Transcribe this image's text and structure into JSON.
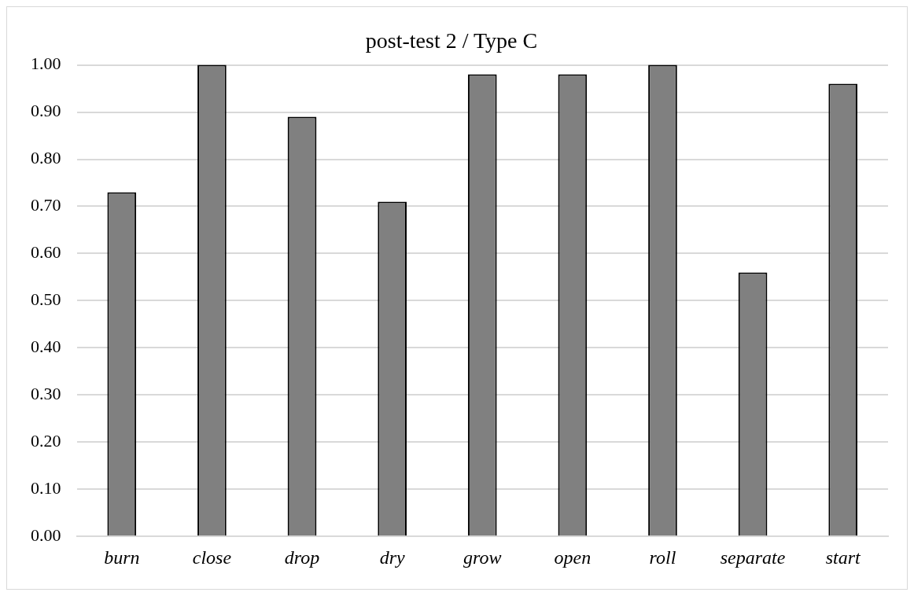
{
  "chart_data": {
    "type": "bar",
    "title": "post-test 2 / Type C",
    "categories": [
      "burn",
      "close",
      "drop",
      "dry",
      "grow",
      "open",
      "roll",
      "separate",
      "start"
    ],
    "values": [
      0.73,
      1.0,
      0.89,
      0.71,
      0.98,
      0.98,
      1.0,
      0.56,
      0.96
    ],
    "color": "#808080",
    "ylim": [
      0,
      1
    ],
    "yticks": [
      {
        "value": 0,
        "label": "0.00"
      },
      {
        "value": 0.1,
        "label": "0.10"
      },
      {
        "value": 0.2,
        "label": "0.20"
      },
      {
        "value": 0.3,
        "label": "0.30"
      },
      {
        "value": 0.4,
        "label": "0.40"
      },
      {
        "value": 0.5,
        "label": "0.50"
      },
      {
        "value": 0.6,
        "label": "0.60"
      },
      {
        "value": 0.7,
        "label": "0.70"
      },
      {
        "value": 0.8,
        "label": "0.80"
      },
      {
        "value": 0.9,
        "label": "0.90"
      },
      {
        "value": 1,
        "label": "1.00"
      }
    ],
    "grid": "y",
    "legend": false
  }
}
